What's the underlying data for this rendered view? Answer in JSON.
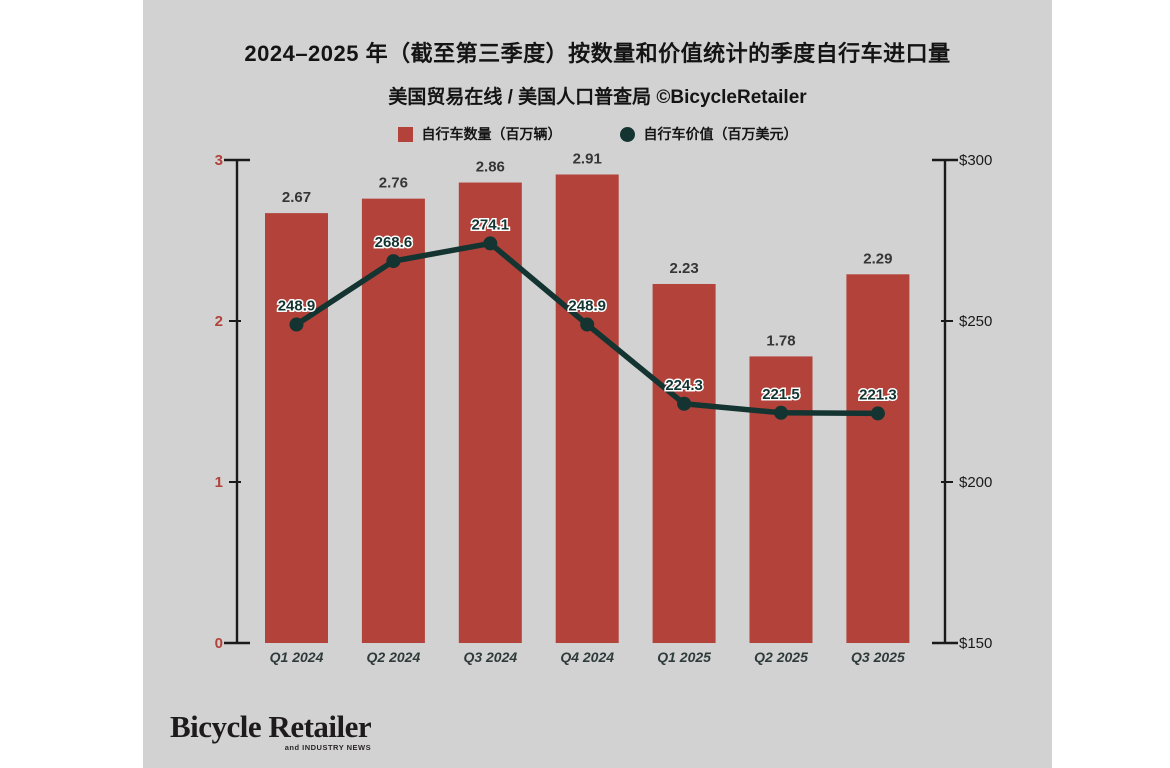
{
  "page": {
    "background": "#ffffff",
    "panel_background": "#d2d2d2"
  },
  "header": {
    "title": "2024–2025 年（截至第三季度）按数量和价值统计的季度自行车进口量",
    "subtitle": "美国贸易在线 / 美国人口普查局 ©BicycleRetailer"
  },
  "legend": {
    "items": [
      {
        "label": "自行车数量（百万辆）",
        "shape": "square",
        "color": "#b2423a"
      },
      {
        "label": "自行车价值（百万美元）",
        "shape": "circle",
        "color": "#143431"
      }
    ]
  },
  "chart_data": {
    "type": "bar",
    "subtype": "combo-bar-line",
    "title": "2024–2025 年（截至第三季度）按数量和价值统计的季度自行车进口量",
    "subtitle": "美国贸易在线 / 美国人口普查局 ©BicycleRetailer",
    "categories": [
      "Q1 2024",
      "Q2 2024",
      "Q3 2024",
      "Q4 2024",
      "Q1 2025",
      "Q2 2025",
      "Q3 2025"
    ],
    "series": [
      {
        "name": "自行车数量（百万辆）",
        "type": "bar",
        "axis": "left",
        "color": "#b2423a",
        "values": [
          2.67,
          2.76,
          2.86,
          2.91,
          2.23,
          1.78,
          2.29
        ]
      },
      {
        "name": "自行车价值（百万美元）",
        "type": "line",
        "axis": "right",
        "color": "#143431",
        "values": [
          248.9,
          268.6,
          274.1,
          248.9,
          224.3,
          221.5,
          221.3
        ]
      }
    ],
    "left_axis": {
      "range": [
        0,
        3
      ],
      "ticks": [
        0,
        1,
        2,
        3
      ],
      "tick_labels": [
        "0",
        "1",
        "2",
        "3"
      ],
      "color": "#b2423a"
    },
    "right_axis": {
      "range": [
        150,
        300
      ],
      "ticks": [
        150,
        200,
        250,
        300
      ],
      "tick_labels": [
        "$150",
        "$200",
        "$250",
        "$300"
      ],
      "color": "#1a1a1a"
    },
    "grid": false,
    "legend_position": "top",
    "bar_label_color": "#363636",
    "line_label_color": "#143431",
    "category_label_color": "#2f3b3a",
    "axis_line_color": "#1a1a1a"
  },
  "footer": {
    "logo_text": "Bicycle Retailer",
    "logo_tagline": "and INDUSTRY NEWS"
  }
}
